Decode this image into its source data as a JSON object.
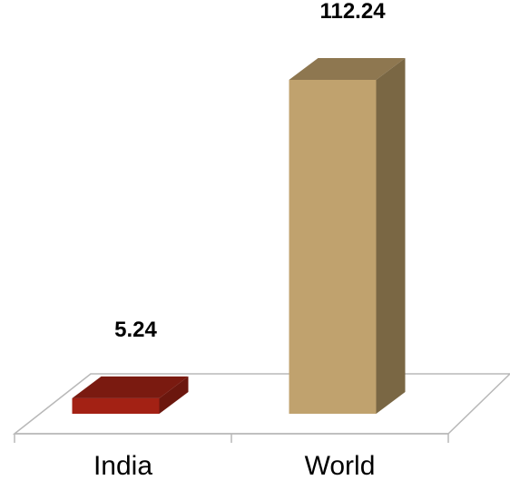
{
  "chart_data": {
    "type": "bar",
    "categories": [
      "India",
      "World"
    ],
    "values": [
      5.24,
      112.24
    ],
    "value_labels": [
      "5.24",
      "112.24"
    ],
    "title": "",
    "xlabel": "",
    "ylabel": "",
    "ylim": [
      0,
      120
    ],
    "grid": false,
    "legend": "none",
    "three_d": true,
    "colors": {
      "India": {
        "front": "#A32114",
        "top": "#7A1A10",
        "side": "#6B170E"
      },
      "World": {
        "front": "#C0A26E",
        "top": "#8E7750",
        "side": "#7A6744"
      }
    },
    "floor_color": "#B8B8B8"
  }
}
